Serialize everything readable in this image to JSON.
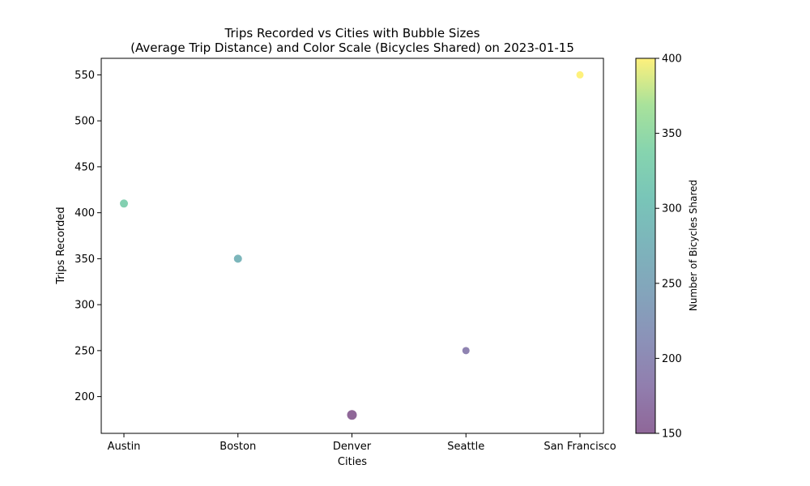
{
  "chart_data": {
    "type": "scatter",
    "title_line1": "Trips Recorded vs Cities with Bubble Sizes",
    "title_line2": "(Average Trip Distance) and Color Scale (Bicycles Shared) on 2023-01-15",
    "xlabel": "Cities",
    "ylabel": "Trips Recorded",
    "categories": [
      "Austin",
      "Boston",
      "Denver",
      "Seattle",
      "San Francisco"
    ],
    "values": [
      410,
      350,
      180,
      250,
      550
    ],
    "bicycles_shared": [
      330,
      280,
      150,
      190,
      400
    ],
    "y_ticks": [
      200,
      250,
      300,
      350,
      400,
      450,
      500,
      550
    ],
    "ylim": [
      160,
      568
    ],
    "colorbar": {
      "label": "Number of Bicycles Shared",
      "range": [
        150,
        400
      ],
      "ticks": [
        150,
        200,
        250,
        300,
        350,
        400
      ],
      "colormap": "viridis"
    },
    "grid": false,
    "legend": "none"
  }
}
